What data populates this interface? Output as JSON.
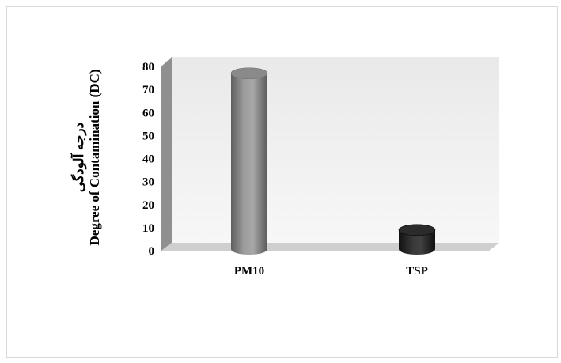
{
  "chart_data": {
    "type": "bar",
    "style": "3d-cylinder",
    "categories": [
      "PM10",
      "TSP"
    ],
    "values": [
      77,
      9
    ],
    "ylabel": "Degree of Contamination (DC)",
    "ylabel_fa": "درجه آلودگی",
    "yticks": [
      0,
      10,
      20,
      30,
      40,
      50,
      60,
      70,
      80
    ],
    "ylim": [
      0,
      80
    ],
    "grid": false,
    "bar_colors": [
      "#8a8a8a",
      "#2b2b2b"
    ],
    "wall_color": "#f0f0f0"
  }
}
